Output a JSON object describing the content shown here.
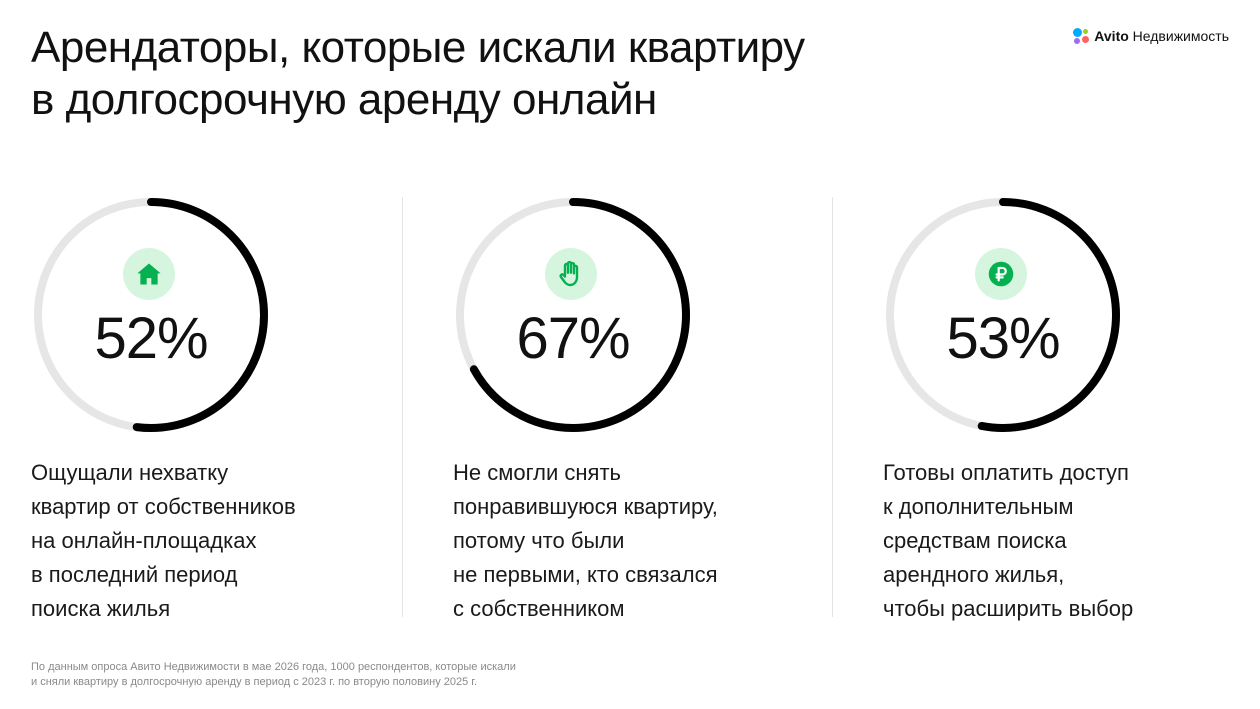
{
  "header": {
    "title_lines": [
      "Арендаторы, которые искали квартиру",
      "в долгосрочную аренду онлайн"
    ],
    "logo": {
      "brand": "Avito",
      "product": "Недвижимость",
      "dot_colors": [
        "#00aaff",
        "#97cf26",
        "#a169f7",
        "#ff6163"
      ]
    }
  },
  "colors": {
    "ring_fill": "#000000",
    "ring_track": "#e6e6e6",
    "icon_bg": "#d6f5de",
    "icon_fg": "#04b04f"
  },
  "chart_data": {
    "type": "pie",
    "unit": "%",
    "max": 100,
    "items": [
      {
        "value": 52,
        "label": "52%",
        "icon": "house-icon",
        "description_lines": [
          "Ощущали нехватку",
          "квартир от собственников",
          "на онлайн-площадках",
          "в последний период",
          "поиска жилья"
        ]
      },
      {
        "value": 67,
        "label": "67%",
        "icon": "hand-icon",
        "description_lines": [
          "Не смогли снять",
          "понравившуюся квартиру,",
          "потому что были",
          "не первыми, кто связался",
          "с собственником"
        ]
      },
      {
        "value": 53,
        "label": "53%",
        "icon": "ruble-icon",
        "description_lines": [
          "Готовы оплатить доступ",
          "к дополнительным",
          "средствам поиска",
          "арендного жилья,",
          "чтобы расширить выбор"
        ]
      }
    ]
  },
  "footnote": {
    "lines": [
      "По данным опроса Авито Недвижимости в мае 2026 года, 1000 респондентов, которые искали",
      "и сняли квартиру в долгосрочную аренду в период с 2023 г. по вторую половину 2025 г."
    ]
  }
}
